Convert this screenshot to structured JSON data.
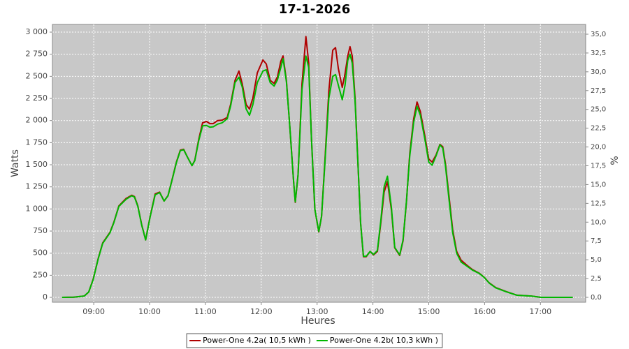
{
  "chart_data": {
    "type": "line",
    "title": "17-1-2026",
    "x_label": "Heures",
    "y_label": "Watts",
    "y2_label": "%",
    "x": [
      8.43,
      8.64,
      8.83,
      8.91,
      8.99,
      9.08,
      9.16,
      9.29,
      9.36,
      9.45,
      9.58,
      9.68,
      9.73,
      9.79,
      9.86,
      9.93,
      10.01,
      10.1,
      10.18,
      10.26,
      10.33,
      10.4,
      10.48,
      10.55,
      10.61,
      10.68,
      10.76,
      10.81,
      10.88,
      10.95,
      11.02,
      11.08,
      11.14,
      11.22,
      11.3,
      11.39,
      11.45,
      11.53,
      11.6,
      11.66,
      11.73,
      11.79,
      11.85,
      11.93,
      12.03,
      12.09,
      12.16,
      12.23,
      12.29,
      12.35,
      12.39,
      12.45,
      12.51,
      12.58,
      12.61,
      12.66,
      12.73,
      12.8,
      12.85,
      12.9,
      12.96,
      13.03,
      13.08,
      13.14,
      13.21,
      13.28,
      13.33,
      13.38,
      13.45,
      13.5,
      13.55,
      13.59,
      13.63,
      13.68,
      13.73,
      13.78,
      13.83,
      13.88,
      13.95,
      14.01,
      14.08,
      14.14,
      14.2,
      14.26,
      14.33,
      14.39,
      14.48,
      14.54,
      14.6,
      14.66,
      14.73,
      14.79,
      14.85,
      14.93,
      15.0,
      15.06,
      15.13,
      15.2,
      15.25,
      15.3,
      15.36,
      15.43,
      15.5,
      15.58,
      15.68,
      15.78,
      15.9,
      15.99,
      16.08,
      16.2,
      16.39,
      16.58,
      16.83,
      17.01,
      17.58
    ],
    "series": [
      {
        "name": "Power-One 4.2a( 10,5 kWh )",
        "color": "#b00000",
        "values": [
          0,
          2,
          15,
          60,
          205,
          440,
          615,
          735,
          850,
          1035,
          1120,
          1155,
          1140,
          1035,
          820,
          650,
          915,
          1170,
          1190,
          1090,
          1150,
          1325,
          1530,
          1665,
          1675,
          1585,
          1490,
          1550,
          1785,
          1975,
          1990,
          1965,
          1965,
          2000,
          2005,
          2035,
          2180,
          2455,
          2560,
          2415,
          2180,
          2130,
          2255,
          2540,
          2685,
          2640,
          2455,
          2420,
          2495,
          2670,
          2730,
          2455,
          1940,
          1310,
          1075,
          1390,
          2415,
          2950,
          2650,
          1785,
          995,
          740,
          915,
          1545,
          2335,
          2795,
          2825,
          2590,
          2375,
          2530,
          2730,
          2835,
          2730,
          2260,
          1545,
          835,
          460,
          460,
          520,
          480,
          520,
          835,
          1190,
          1310,
          995,
          560,
          475,
          640,
          1075,
          1625,
          2020,
          2210,
          2100,
          1825,
          1565,
          1530,
          1610,
          1730,
          1705,
          1505,
          1155,
          760,
          520,
          420,
          365,
          315,
          275,
          230,
          165,
          110,
          65,
          25,
          15,
          0,
          0
        ]
      },
      {
        "name": "Power-One 4.2b( 10,3 kWh )",
        "color": "#00b800",
        "values": [
          0,
          2,
          15,
          60,
          200,
          435,
          610,
          730,
          845,
          1030,
          1110,
          1150,
          1135,
          1030,
          815,
          650,
          910,
          1160,
          1185,
          1090,
          1150,
          1320,
          1525,
          1660,
          1670,
          1585,
          1490,
          1545,
          1770,
          1940,
          1945,
          1925,
          1930,
          1960,
          1975,
          2020,
          2160,
          2430,
          2490,
          2380,
          2130,
          2060,
          2180,
          2430,
          2560,
          2575,
          2430,
          2390,
          2460,
          2600,
          2700,
          2440,
          1940,
          1310,
          1080,
          1390,
          2350,
          2730,
          2600,
          1785,
          1000,
          745,
          915,
          1520,
          2250,
          2500,
          2520,
          2400,
          2235,
          2400,
          2680,
          2750,
          2650,
          2230,
          1540,
          840,
          465,
          465,
          520,
          485,
          530,
          860,
          1250,
          1370,
          1020,
          565,
          480,
          650,
          1080,
          1600,
          1980,
          2160,
          2060,
          1790,
          1530,
          1495,
          1600,
          1725,
          1690,
          1480,
          1120,
          730,
          500,
          400,
          355,
          310,
          272,
          228,
          163,
          108,
          63,
          24,
          15,
          0,
          0
        ]
      }
    ],
    "xlim": [
      8.26,
      17.81
    ],
    "xticks": [
      {
        "value": 9,
        "label": "09:00"
      },
      {
        "value": 10,
        "label": "10:00"
      },
      {
        "value": 11,
        "label": "11:00"
      },
      {
        "value": 12,
        "label": "12:00"
      },
      {
        "value": 13,
        "label": "13:00"
      },
      {
        "value": 14,
        "label": "14:00"
      },
      {
        "value": 15,
        "label": "15:00"
      },
      {
        "value": 16,
        "label": "16:00"
      },
      {
        "value": 17,
        "label": "17:00"
      }
    ],
    "ylim": [
      -55,
      3087
    ],
    "yticks": [
      0,
      250,
      500,
      750,
      {
        "value": 1000,
        "label": "1 000"
      },
      {
        "value": 1250,
        "label": "1 250"
      },
      {
        "value": 1500,
        "label": "1 500"
      },
      {
        "value": 1750,
        "label": "1 750"
      },
      {
        "value": 2000,
        "label": "2 000"
      },
      {
        "value": 2250,
        "label": "2 250"
      },
      {
        "value": 2500,
        "label": "2 500"
      },
      {
        "value": 2750,
        "label": "2 750"
      },
      {
        "value": 3000,
        "label": "3 000"
      }
    ],
    "y2lim": [
      -0.65,
      36.3
    ],
    "y2ticks": [
      {
        "value": 0,
        "label": "0,0"
      },
      {
        "value": 2.5,
        "label": "2,5"
      },
      {
        "value": 5,
        "label": "5,0"
      },
      {
        "value": 7.5,
        "label": "7,5"
      },
      {
        "value": 10,
        "label": "10,0"
      },
      {
        "value": 12.5,
        "label": "12,5"
      },
      {
        "value": 15,
        "label": "15,0"
      },
      {
        "value": 17.5,
        "label": "17,5"
      },
      {
        "value": 20,
        "label": "20,0"
      },
      {
        "value": 22.5,
        "label": "22,5"
      },
      {
        "value": 25,
        "label": "25,0"
      },
      {
        "value": 27.5,
        "label": "27,5"
      },
      {
        "value": 30,
        "label": "30,0"
      },
      {
        "value": 32.5,
        "label": "32,5"
      },
      {
        "value": 35,
        "label": "35,0"
      }
    ],
    "grid": true,
    "plot_background": "#c8c8c8",
    "legend": "bottom"
  }
}
